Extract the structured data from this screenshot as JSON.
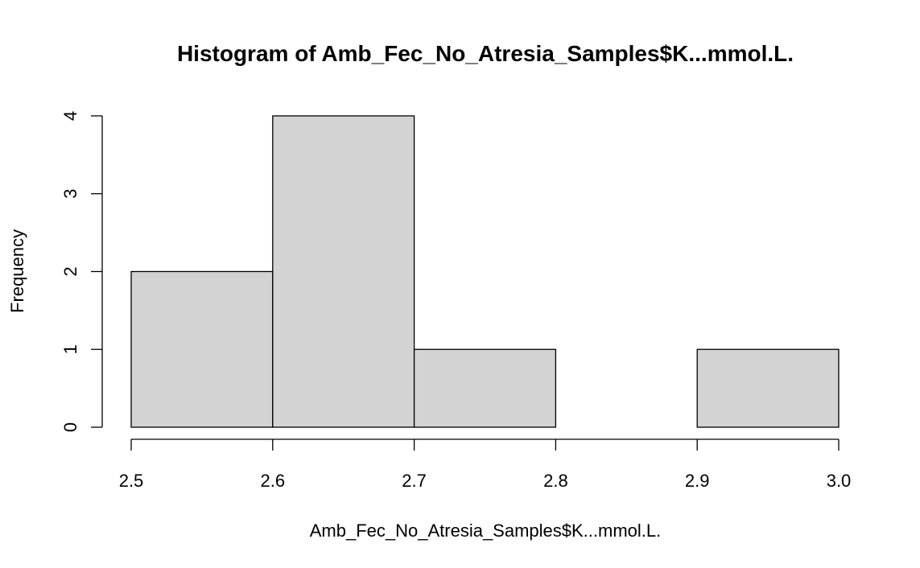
{
  "chart_data": {
    "type": "bar",
    "title": "Histogram of Amb_Fec_No_Atresia_Samples$K...mmol.L.",
    "xlabel": "Amb_Fec_No_Atresia_Samples$K...mmol.L.",
    "ylabel": "Frequency",
    "bins": [
      {
        "start": 2.5,
        "end": 2.6,
        "count": 2
      },
      {
        "start": 2.6,
        "end": 2.7,
        "count": 4
      },
      {
        "start": 2.7,
        "end": 2.8,
        "count": 1
      },
      {
        "start": 2.8,
        "end": 2.9,
        "count": 0
      },
      {
        "start": 2.9,
        "end": 3.0,
        "count": 1
      }
    ],
    "xlim": [
      2.5,
      3.0
    ],
    "ylim": [
      0,
      4
    ],
    "x_ticks": [
      "2.5",
      "2.6",
      "2.7",
      "2.8",
      "2.9",
      "3.0"
    ],
    "y_ticks": [
      "0",
      "1",
      "2",
      "3",
      "4"
    ],
    "bar_color": "#d3d3d3",
    "grid": false,
    "legend": "none"
  }
}
